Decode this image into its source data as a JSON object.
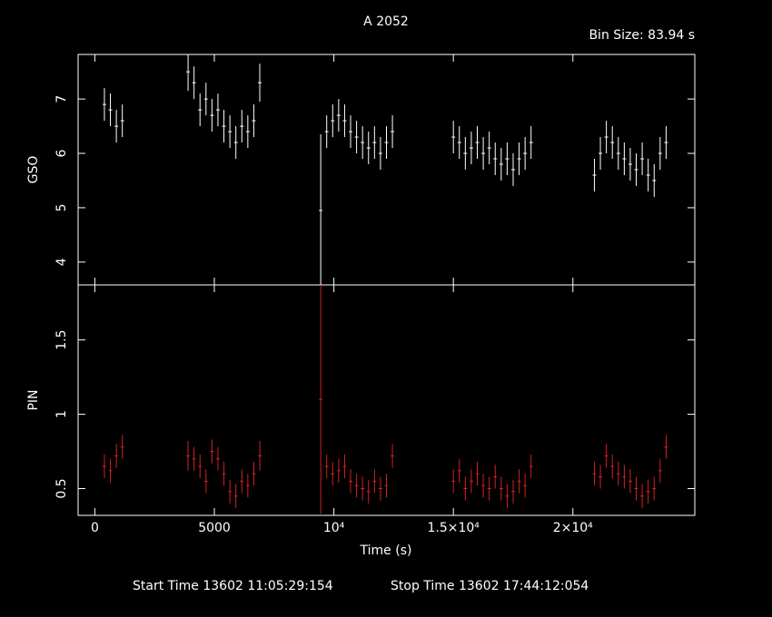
{
  "chart_data": [
    {
      "type": "scatter",
      "title": "A 2052",
      "subtitle": "Bin Size: 83.94 s",
      "ylabel": "GSO",
      "x": [
        400,
        650,
        900,
        1150,
        3900,
        4150,
        4400,
        4650,
        4900,
        5150,
        5400,
        5650,
        5900,
        6150,
        6400,
        6650,
        6900,
        9450,
        9700,
        9950,
        10200,
        10450,
        10700,
        10950,
        11200,
        11450,
        11700,
        11950,
        12200,
        12450,
        15000,
        15250,
        15500,
        15750,
        16000,
        16250,
        16500,
        16750,
        17000,
        17250,
        17500,
        17750,
        18000,
        18250,
        20900,
        21150,
        21400,
        21650,
        21900,
        22150,
        22400,
        22650,
        22900,
        23150,
        23400,
        23650,
        23900
      ],
      "series": [
        {
          "name": "GSO",
          "color": "#ffffff",
          "values": [
            6.9,
            6.8,
            6.5,
            6.6,
            7.5,
            7.3,
            6.8,
            7.0,
            6.7,
            6.8,
            6.5,
            6.4,
            6.2,
            6.5,
            6.4,
            6.6,
            7.3,
            4.95,
            6.4,
            6.6,
            6.7,
            6.6,
            6.4,
            6.3,
            6.2,
            6.1,
            6.2,
            6.0,
            6.2,
            6.4,
            6.3,
            6.2,
            6.0,
            6.1,
            6.2,
            6.0,
            6.1,
            5.9,
            5.8,
            5.9,
            5.7,
            5.9,
            6.0,
            6.2,
            5.6,
            6.0,
            6.3,
            6.2,
            6.0,
            5.9,
            5.8,
            5.7,
            5.9,
            5.6,
            5.5,
            6.0,
            6.2
          ],
          "errors": [
            0.3,
            0.3,
            0.3,
            0.3,
            0.35,
            0.3,
            0.3,
            0.3,
            0.3,
            0.3,
            0.3,
            0.3,
            0.3,
            0.3,
            0.3,
            0.3,
            0.35,
            1.4,
            0.3,
            0.3,
            0.3,
            0.3,
            0.3,
            0.3,
            0.3,
            0.3,
            0.3,
            0.3,
            0.3,
            0.3,
            0.3,
            0.3,
            0.3,
            0.3,
            0.3,
            0.3,
            0.3,
            0.3,
            0.3,
            0.3,
            0.3,
            0.3,
            0.3,
            0.3,
            0.3,
            0.3,
            0.3,
            0.3,
            0.3,
            0.3,
            0.3,
            0.3,
            0.3,
            0.3,
            0.3,
            0.3,
            0.3
          ]
        }
      ],
      "xlim": [
        -700,
        25100
      ],
      "ylim": [
        3.58,
        7.82
      ],
      "yticks": [
        4,
        5,
        6,
        7
      ]
    },
    {
      "type": "scatter",
      "xlabel": "Time (s)",
      "ylabel": "PIN",
      "annotations": [
        "Start Time 13602 11:05:29:154",
        "Stop Time 13602 17:44:12:054"
      ],
      "x": [
        400,
        650,
        900,
        1150,
        3900,
        4150,
        4400,
        4650,
        4900,
        5150,
        5400,
        5650,
        5900,
        6150,
        6400,
        6650,
        6900,
        9450,
        9700,
        9950,
        10200,
        10450,
        10700,
        10950,
        11200,
        11450,
        11700,
        11950,
        12200,
        12450,
        15000,
        15250,
        15500,
        15750,
        16000,
        16250,
        16500,
        16750,
        17000,
        17250,
        17500,
        17750,
        18000,
        18250,
        20900,
        21150,
        21400,
        21650,
        21900,
        22150,
        22400,
        22650,
        22900,
        23150,
        23400,
        23650,
        23900
      ],
      "series": [
        {
          "name": "PIN",
          "color": "#d42020",
          "values": [
            0.65,
            0.62,
            0.72,
            0.78,
            0.72,
            0.7,
            0.65,
            0.55,
            0.75,
            0.7,
            0.6,
            0.48,
            0.45,
            0.55,
            0.52,
            0.6,
            0.72,
            1.1,
            0.65,
            0.6,
            0.62,
            0.65,
            0.55,
            0.52,
            0.5,
            0.48,
            0.55,
            0.5,
            0.52,
            0.72,
            0.55,
            0.62,
            0.5,
            0.55,
            0.6,
            0.52,
            0.5,
            0.58,
            0.5,
            0.45,
            0.48,
            0.55,
            0.52,
            0.65,
            0.6,
            0.58,
            0.72,
            0.65,
            0.6,
            0.58,
            0.55,
            0.5,
            0.45,
            0.48,
            0.5,
            0.62,
            0.78
          ],
          "errors": [
            0.08,
            0.08,
            0.08,
            0.08,
            0.1,
            0.08,
            0.08,
            0.08,
            0.08,
            0.08,
            0.08,
            0.08,
            0.08,
            0.08,
            0.08,
            0.08,
            0.1,
            0.77,
            0.08,
            0.08,
            0.08,
            0.08,
            0.08,
            0.08,
            0.08,
            0.08,
            0.08,
            0.08,
            0.08,
            0.08,
            0.08,
            0.08,
            0.08,
            0.08,
            0.08,
            0.08,
            0.08,
            0.08,
            0.08,
            0.08,
            0.08,
            0.08,
            0.08,
            0.08,
            0.08,
            0.08,
            0.08,
            0.08,
            0.08,
            0.08,
            0.08,
            0.08,
            0.08,
            0.08,
            0.08,
            0.08,
            0.08
          ]
        }
      ],
      "xlim": [
        -700,
        25100
      ],
      "ylim": [
        0.32,
        1.87
      ],
      "yticks": [
        0.5,
        1,
        1.5
      ],
      "xticks": [
        0,
        5000,
        {
          "value": 10000,
          "label": "10⁴"
        },
        {
          "value": 15000,
          "label": "1.5×10⁴"
        },
        {
          "value": 20000,
          "label": "2×10⁴"
        }
      ]
    }
  ]
}
